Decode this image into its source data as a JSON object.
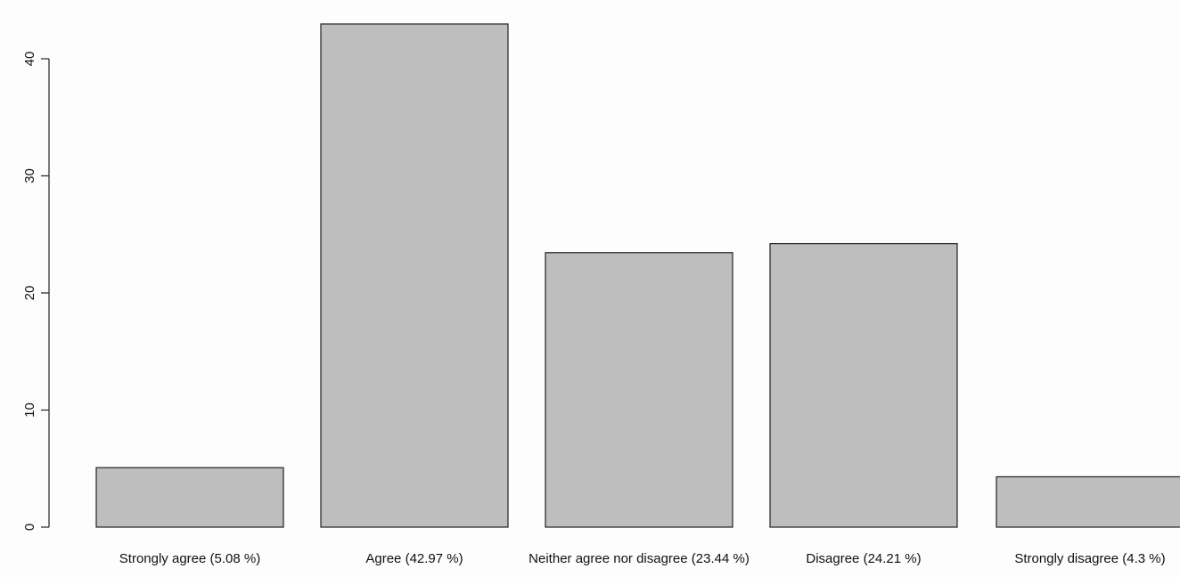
{
  "chart_data": {
    "type": "bar",
    "categories": [
      "Strongly agree (5.08 %)",
      "Agree (42.97 %)",
      "Neither agree nor disagree (23.44 %)",
      "Disagree (24.21 %)",
      "Strongly disagree (4.3 %)"
    ],
    "values": [
      5.08,
      42.97,
      23.44,
      24.21,
      4.3
    ],
    "y_ticks": [
      0,
      10,
      20,
      30,
      40
    ],
    "y_tick_labels": [
      "0",
      "10",
      "20",
      "30",
      "40"
    ],
    "ylim": [
      0,
      44
    ],
    "colors": {
      "bar_fill": "#bebebe",
      "bar_stroke": "#222222"
    }
  }
}
